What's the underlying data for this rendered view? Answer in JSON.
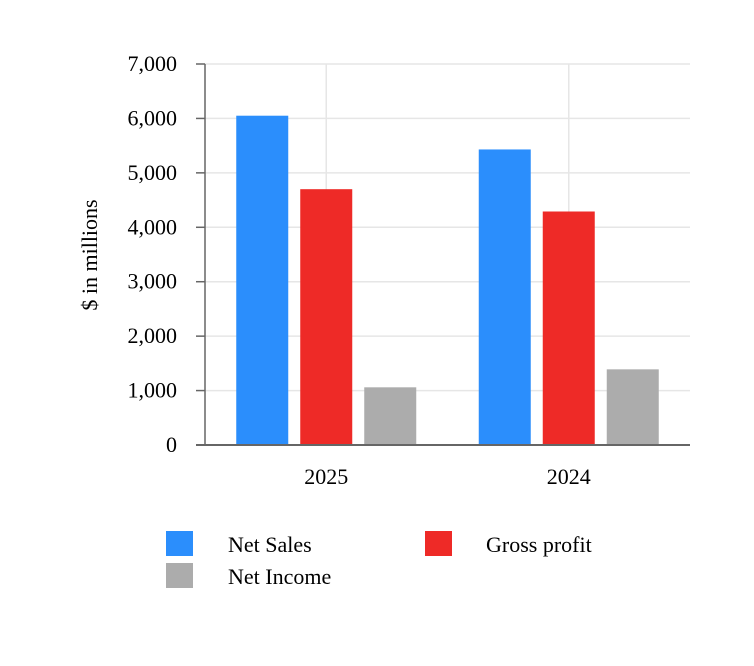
{
  "chart_data": {
    "type": "bar",
    "categories": [
      "2025",
      "2024"
    ],
    "series": [
      {
        "name": "Net Sales",
        "values": [
          6050,
          5430
        ],
        "color": "#2b8efc"
      },
      {
        "name": "Gross profit",
        "values": [
          4700,
          4290
        ],
        "color": "#ee2a27"
      },
      {
        "name": "Net Income",
        "values": [
          1060,
          1390
        ],
        "color": "#acacac"
      }
    ],
    "title": "",
    "xlabel": "",
    "ylabel": "$ in millions",
    "ylim": [
      0,
      7000
    ],
    "y_ticks": [
      "0",
      "1,000",
      "2,000",
      "3,000",
      "4,000",
      "5,000",
      "6,000",
      "7,000"
    ],
    "grid": true,
    "legend_position": "bottom"
  }
}
